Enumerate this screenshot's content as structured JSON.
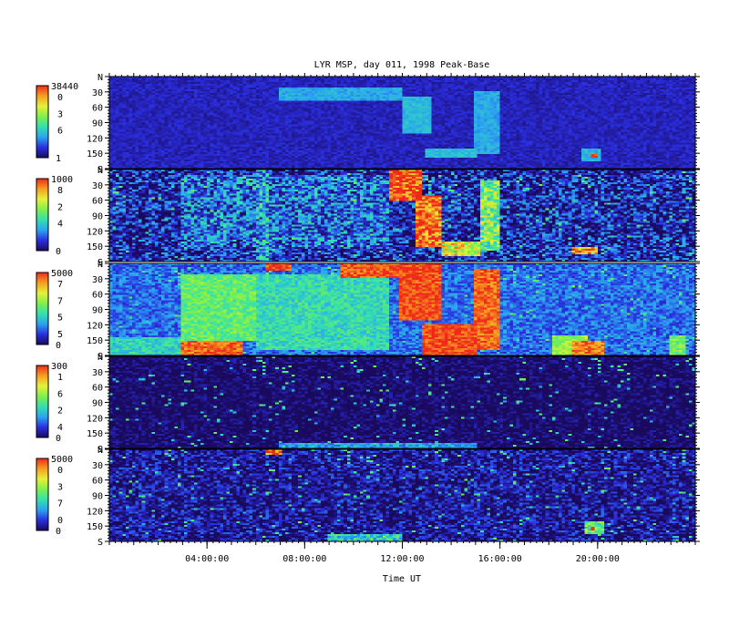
{
  "chart_data": {
    "type": "heatmap",
    "title": "LYR MSP, day 011, 1998 Peak-Base",
    "xlabel": "Time UT",
    "x_tick_labels": [
      "04:00:00",
      "08:00:00",
      "12:00:00",
      "16:00:00",
      "20:00:00"
    ],
    "x_ticks_hours": [
      4,
      8,
      12,
      16,
      20
    ],
    "xlim_hours": [
      0,
      24
    ],
    "y_tick_labels": [
      "N",
      "30",
      "60",
      "90",
      "120",
      "150",
      "S"
    ],
    "y_ticks_deg": [
      0,
      30,
      60,
      90,
      120,
      150,
      180
    ],
    "ylim_deg": [
      0,
      180
    ],
    "colorscale": [
      "#1a0a5e",
      "#2a2ee0",
      "#2aa4f0",
      "#33e0b0",
      "#7ef04a",
      "#e6f03a",
      "#f5a020",
      "#f02a1a"
    ],
    "panels": [
      {
        "name": "panel-1",
        "color_max": "38440",
        "color_min": "1",
        "scale_labels": [
          "0",
          "3",
          "6"
        ],
        "background_level": 0.1,
        "noise": 0.05,
        "features": [
          {
            "t0": 6.4,
            "t1": 7.3,
            "y0": 0,
            "y1": 10,
            "level": 0.05
          },
          {
            "t0": 7.0,
            "t1": 12.0,
            "y0": 20,
            "y1": 45,
            "level": 0.3
          },
          {
            "t0": 12.0,
            "t1": 13.2,
            "y0": 40,
            "y1": 110,
            "level": 0.33
          },
          {
            "t0": 13.0,
            "t1": 15.0,
            "y0": 140,
            "y1": 160,
            "level": 0.34
          },
          {
            "t0": 15.0,
            "t1": 16.0,
            "y0": 30,
            "y1": 150,
            "level": 0.3
          },
          {
            "t0": 19.3,
            "t1": 20.1,
            "y0": 140,
            "y1": 165,
            "level": 0.32
          },
          {
            "t0": 19.7,
            "t1": 20.0,
            "y0": 150,
            "y1": 160,
            "level": 0.97
          }
        ]
      },
      {
        "name": "panel-2",
        "color_max": "1000",
        "color_min": "0",
        "scale_labels": [
          "8",
          "2",
          "4"
        ],
        "background_level": 0.1,
        "noise": 0.22,
        "features": [
          {
            "t0": 3.0,
            "t1": 11.5,
            "y0": 10,
            "y1": 150,
            "level": 0.22
          },
          {
            "t0": 6.0,
            "t1": 6.6,
            "y0": 0,
            "y1": 180,
            "level": 0.3
          },
          {
            "t0": 11.5,
            "t1": 12.8,
            "y0": 0,
            "y1": 60,
            "level": 0.97
          },
          {
            "t0": 12.5,
            "t1": 13.6,
            "y0": 50,
            "y1": 150,
            "level": 0.93
          },
          {
            "t0": 13.6,
            "t1": 15.2,
            "y0": 140,
            "y1": 170,
            "level": 0.7
          },
          {
            "t0": 15.2,
            "t1": 16.0,
            "y0": 20,
            "y1": 160,
            "level": 0.55
          },
          {
            "t0": 19.0,
            "t1": 20.0,
            "y0": 150,
            "y1": 165,
            "level": 0.85
          }
        ]
      },
      {
        "name": "panel-3",
        "color_max": "5000",
        "color_min": "0",
        "scale_labels": [
          "7",
          "7",
          "5",
          "5"
        ],
        "background_level": 0.22,
        "noise": 0.1,
        "features": [
          {
            "t0": 0.0,
            "t1": 3.0,
            "y0": 145,
            "y1": 180,
            "level": 0.4
          },
          {
            "t0": 3.0,
            "t1": 6.0,
            "y0": 20,
            "y1": 150,
            "level": 0.52
          },
          {
            "t0": 3.0,
            "t1": 5.5,
            "y0": 150,
            "y1": 180,
            "level": 0.93
          },
          {
            "t0": 6.4,
            "t1": 7.4,
            "y0": 0,
            "y1": 15,
            "level": 0.97
          },
          {
            "t0": 6.0,
            "t1": 11.5,
            "y0": 20,
            "y1": 170,
            "level": 0.42
          },
          {
            "t0": 9.5,
            "t1": 12.0,
            "y0": 0,
            "y1": 30,
            "level": 0.95
          },
          {
            "t0": 11.8,
            "t1": 13.6,
            "y0": 0,
            "y1": 110,
            "level": 0.97
          },
          {
            "t0": 12.8,
            "t1": 15.0,
            "y0": 120,
            "y1": 180,
            "level": 0.97
          },
          {
            "t0": 15.0,
            "t1": 16.0,
            "y0": 10,
            "y1": 170,
            "level": 0.93
          },
          {
            "t0": 18.2,
            "t1": 19.6,
            "y0": 140,
            "y1": 180,
            "level": 0.6
          },
          {
            "t0": 19.0,
            "t1": 20.2,
            "y0": 150,
            "y1": 180,
            "level": 0.9
          },
          {
            "t0": 23.0,
            "t1": 23.6,
            "y0": 140,
            "y1": 180,
            "level": 0.55
          }
        ]
      },
      {
        "name": "panel-4",
        "color_max": "300",
        "color_min": "0",
        "scale_labels": [
          "1",
          "6",
          "2",
          "4"
        ],
        "background_level": 0.0,
        "noise": 0.1,
        "features": [
          {
            "t0": 7.0,
            "t1": 15.0,
            "y0": 170,
            "y1": 180,
            "level": 0.3
          }
        ]
      },
      {
        "name": "panel-5",
        "color_max": "5000",
        "color_min": "0",
        "scale_labels": [
          "0",
          "3",
          "7",
          "0"
        ],
        "background_level": 0.06,
        "noise": 0.16,
        "features": [
          {
            "t0": 6.4,
            "t1": 7.0,
            "y0": 0,
            "y1": 12,
            "level": 0.9
          },
          {
            "t0": 9.0,
            "t1": 12.0,
            "y0": 165,
            "y1": 180,
            "level": 0.4
          },
          {
            "t0": 19.5,
            "t1": 20.2,
            "y0": 140,
            "y1": 165,
            "level": 0.5
          },
          {
            "t0": 19.7,
            "t1": 19.9,
            "y0": 150,
            "y1": 160,
            "level": 0.97
          }
        ]
      }
    ]
  }
}
